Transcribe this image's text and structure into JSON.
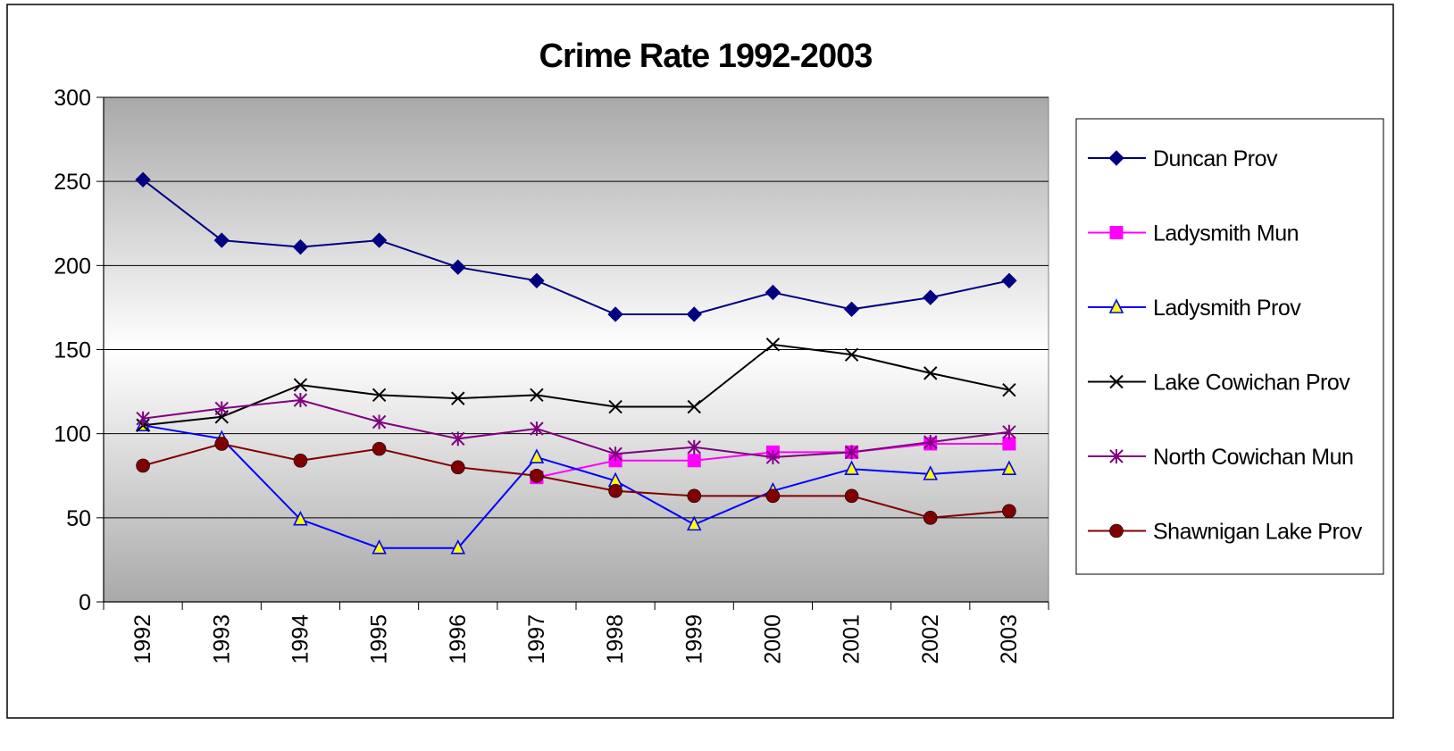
{
  "chart_data": {
    "type": "line",
    "title": "Crime Rate 1992-2003",
    "xlabel": "",
    "ylabel": "",
    "categories": [
      "1992",
      "1993",
      "1994",
      "1995",
      "1996",
      "1997",
      "1998",
      "1999",
      "2000",
      "2001",
      "2002",
      "2003"
    ],
    "ylim": [
      0,
      300
    ],
    "yticks": [
      0,
      50,
      100,
      150,
      200,
      250,
      300
    ],
    "grid": true,
    "legend": "right",
    "series": [
      {
        "name": "Duncan Prov",
        "color": "#000080",
        "marker": "diamond",
        "values": [
          251,
          215,
          211,
          215,
          199,
          191,
          171,
          171,
          184,
          174,
          181,
          191
        ]
      },
      {
        "name": "Ladysmith Mun",
        "color": "#ff00ff",
        "marker": "square",
        "values": [
          null,
          null,
          null,
          null,
          null,
          74,
          84,
          84,
          89,
          89,
          94,
          94
        ]
      },
      {
        "name": "Ladysmith Prov",
        "color": "#0000ff",
        "marker": "triangle",
        "values": [
          105,
          97,
          49,
          32,
          32,
          86,
          72,
          46,
          66,
          79,
          76,
          79
        ]
      },
      {
        "name": "Lake Cowichan Prov",
        "color": "#000000",
        "marker": "x",
        "values": [
          105,
          110,
          129,
          123,
          121,
          123,
          116,
          116,
          153,
          147,
          136,
          126
        ]
      },
      {
        "name": "North Cowichan Mun",
        "color": "#800080",
        "marker": "star",
        "values": [
          109,
          115,
          120,
          107,
          97,
          103,
          88,
          92,
          86,
          89,
          95,
          101
        ]
      },
      {
        "name": "Shawnigan Lake Prov",
        "color": "#800000",
        "marker": "circle",
        "values": [
          81,
          94,
          84,
          91,
          80,
          75,
          66,
          63,
          63,
          63,
          50,
          54
        ]
      }
    ]
  }
}
